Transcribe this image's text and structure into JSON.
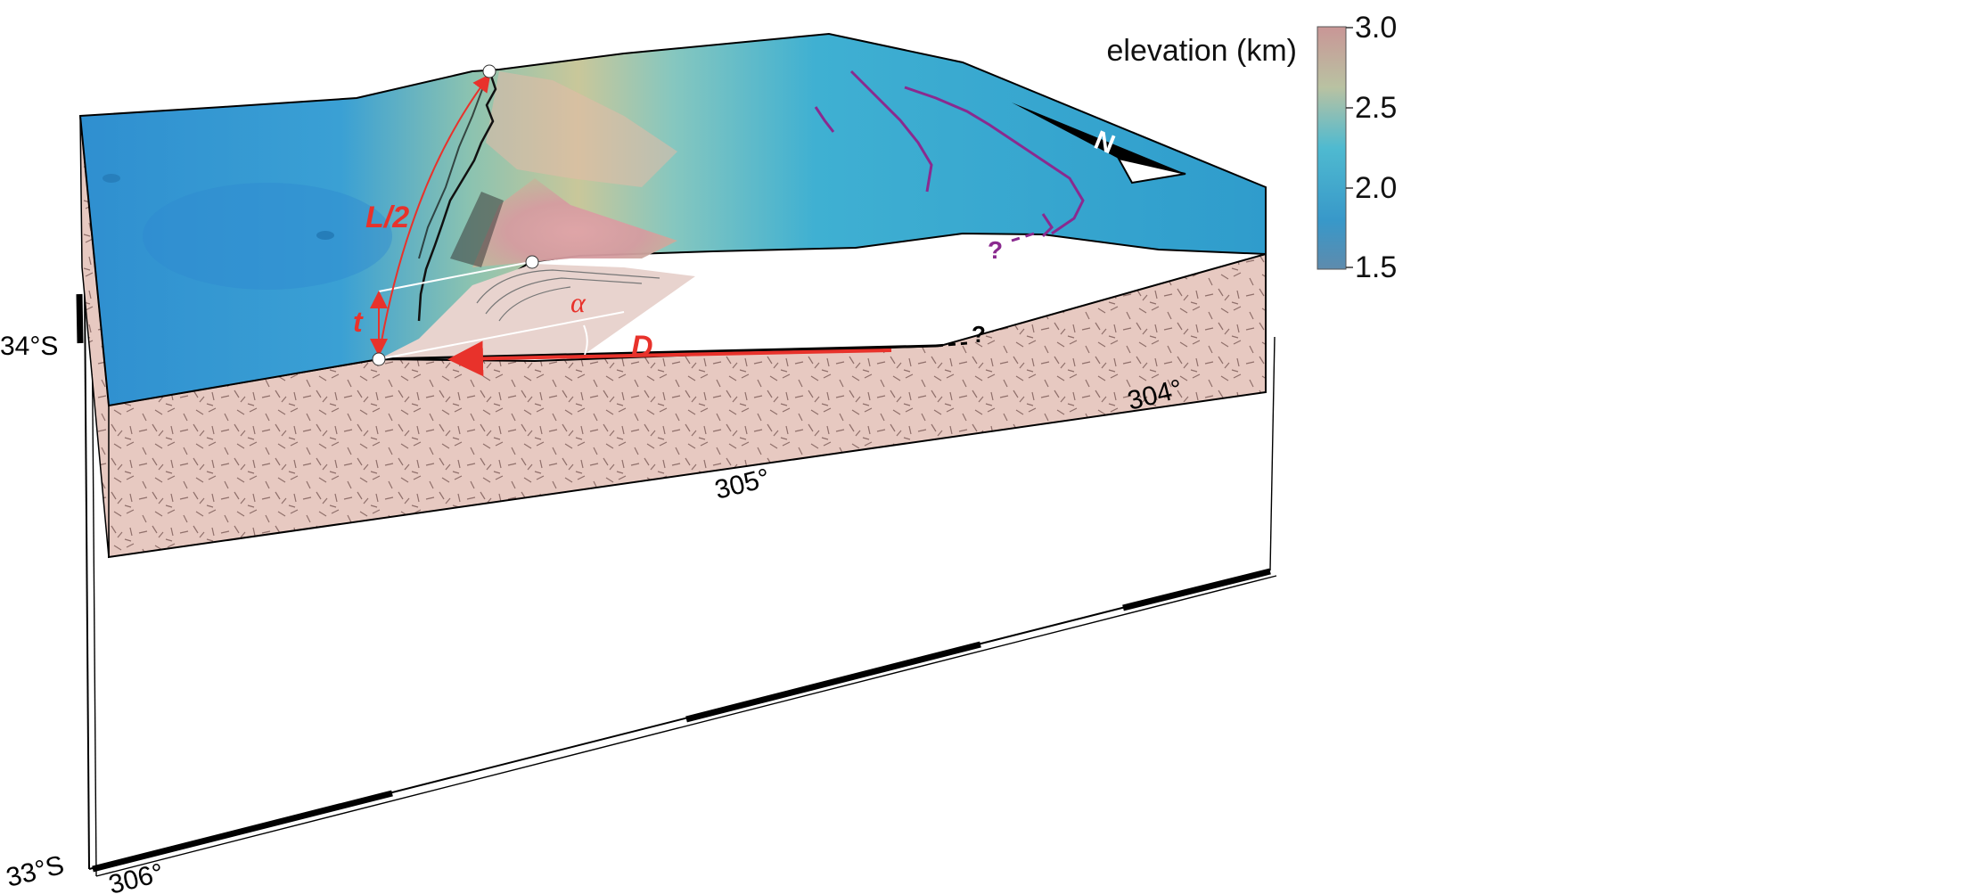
{
  "colorbar": {
    "title": "elevation (km)",
    "ticks": [
      "3.0",
      "2.5",
      "2.0",
      "1.5"
    ],
    "colors": [
      "#c89595",
      "#b2c0a0",
      "#5ab8c8",
      "#3a9ac8",
      "#5f8fb0"
    ]
  },
  "annotations": {
    "half_length": "L/2",
    "thickness": "t",
    "dip_angle": "α",
    "displacement": "D",
    "uncertain_fault_tip": "?",
    "uncertain_purple_fault": "?",
    "north_arrow": "N"
  },
  "axes": {
    "lon_labels": [
      "306°",
      "305°",
      "304°"
    ],
    "lat_labels": [
      "34°S",
      "33°S"
    ]
  },
  "colors": {
    "red_annotation": "#e8322b",
    "purple_fault": "#8a2a8f",
    "crust": "#e8cbc3",
    "ridge": "#d49a9a"
  }
}
